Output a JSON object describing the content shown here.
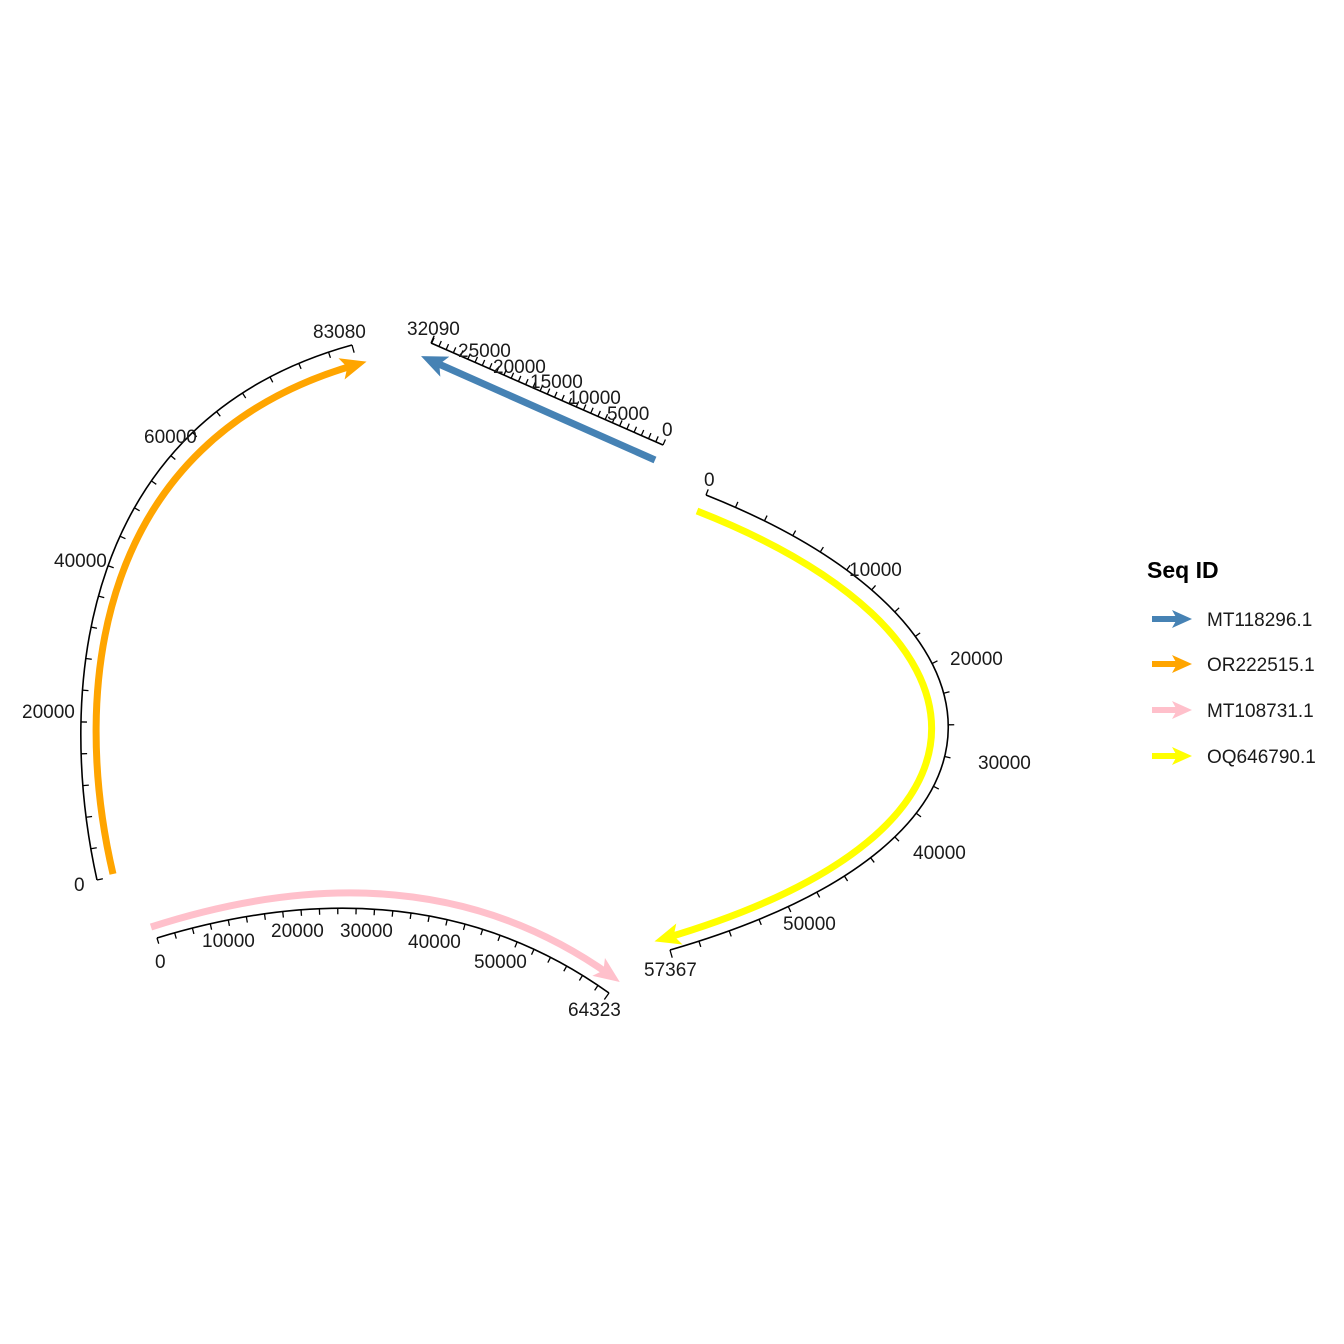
{
  "legend": {
    "title": "Seq ID",
    "items": [
      {
        "label": "MT118296.1",
        "color": "#4682B4"
      },
      {
        "label": "OR222515.1",
        "color": "#FFA500"
      },
      {
        "label": "MT108731.1",
        "color": "#FFC0CB"
      },
      {
        "label": "OQ646790.1",
        "color": "#FFFF00"
      }
    ]
  },
  "sequences": [
    {
      "id": "MT118296.1",
      "length": 32090,
      "color": "#4682B4",
      "tick_labels": [
        "0",
        "5000",
        "10000",
        "15000",
        "20000",
        "25000",
        "32090"
      ]
    },
    {
      "id": "OR222515.1",
      "length": 83080,
      "color": "#FFA500",
      "tick_labels": [
        "0",
        "20000",
        "40000",
        "60000",
        "83080"
      ]
    },
    {
      "id": "MT108731.1",
      "length": 64323,
      "color": "#FFC0CB",
      "tick_labels": [
        "0",
        "10000",
        "20000",
        "30000",
        "40000",
        "50000",
        "64323"
      ]
    },
    {
      "id": "OQ646790.1",
      "length": 57367,
      "color": "#FFFF00",
      "tick_labels": [
        "0",
        "10000",
        "20000",
        "30000",
        "40000",
        "50000",
        "57367"
      ]
    }
  ]
}
